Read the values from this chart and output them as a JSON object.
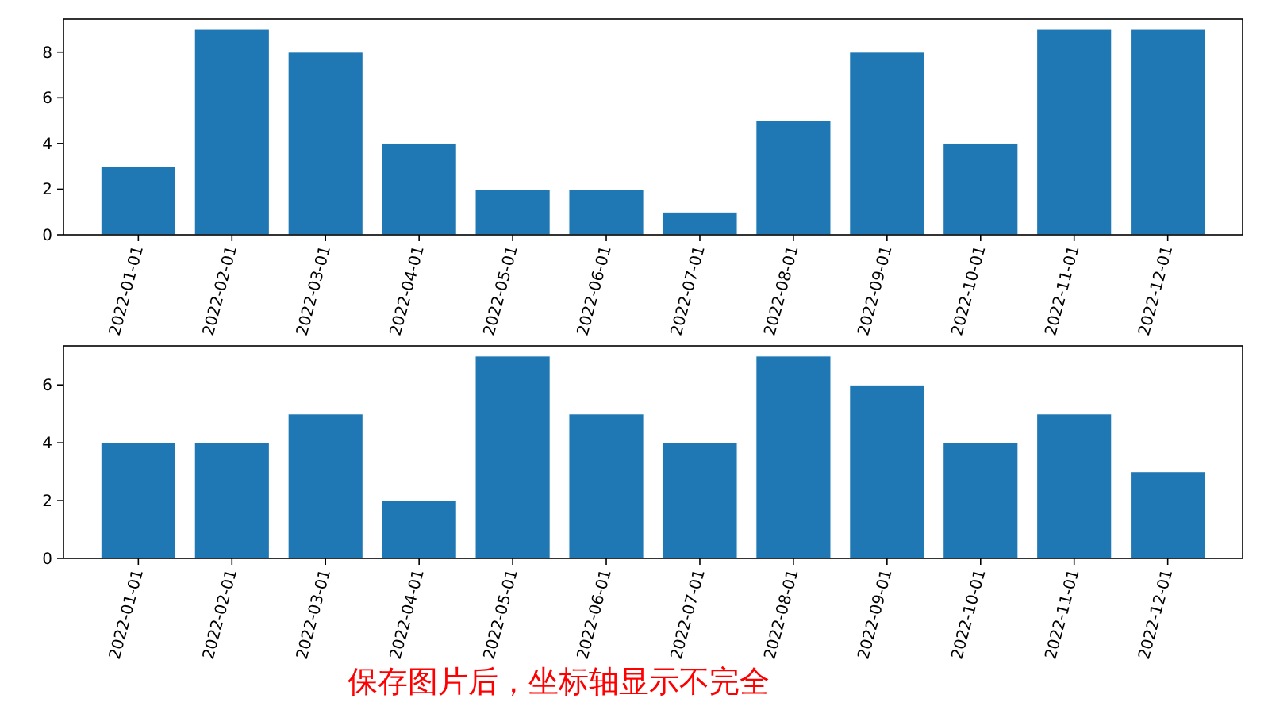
{
  "chart_data": [
    {
      "type": "bar",
      "categories": [
        "2022-01-01",
        "2022-02-01",
        "2022-03-01",
        "2022-04-01",
        "2022-05-01",
        "2022-06-01",
        "2022-07-01",
        "2022-08-01",
        "2022-09-01",
        "2022-10-01",
        "2022-11-01",
        "2022-12-01"
      ],
      "values": [
        3,
        9,
        8,
        4,
        2,
        2,
        1,
        5,
        8,
        4,
        9,
        9
      ],
      "color": "#1f77b4",
      "ylim": [
        0,
        9.45
      ],
      "yticks": [
        0,
        2,
        4,
        6,
        8
      ]
    },
    {
      "type": "bar",
      "categories": [
        "2022-01-01",
        "2022-02-01",
        "2022-03-01",
        "2022-04-01",
        "2022-05-01",
        "2022-06-01",
        "2022-07-01",
        "2022-08-01",
        "2022-09-01",
        "2022-10-01",
        "2022-11-01",
        "2022-12-01"
      ],
      "values": [
        4,
        4,
        5,
        2,
        7,
        5,
        4,
        7,
        6,
        4,
        5,
        3
      ],
      "color": "#1f77b4",
      "ylim": [
        0,
        7.35
      ],
      "yticks": [
        0,
        2,
        4,
        6
      ],
      "annotations": [
        "保存图片后，坐标轴显示不完全"
      ]
    }
  ]
}
